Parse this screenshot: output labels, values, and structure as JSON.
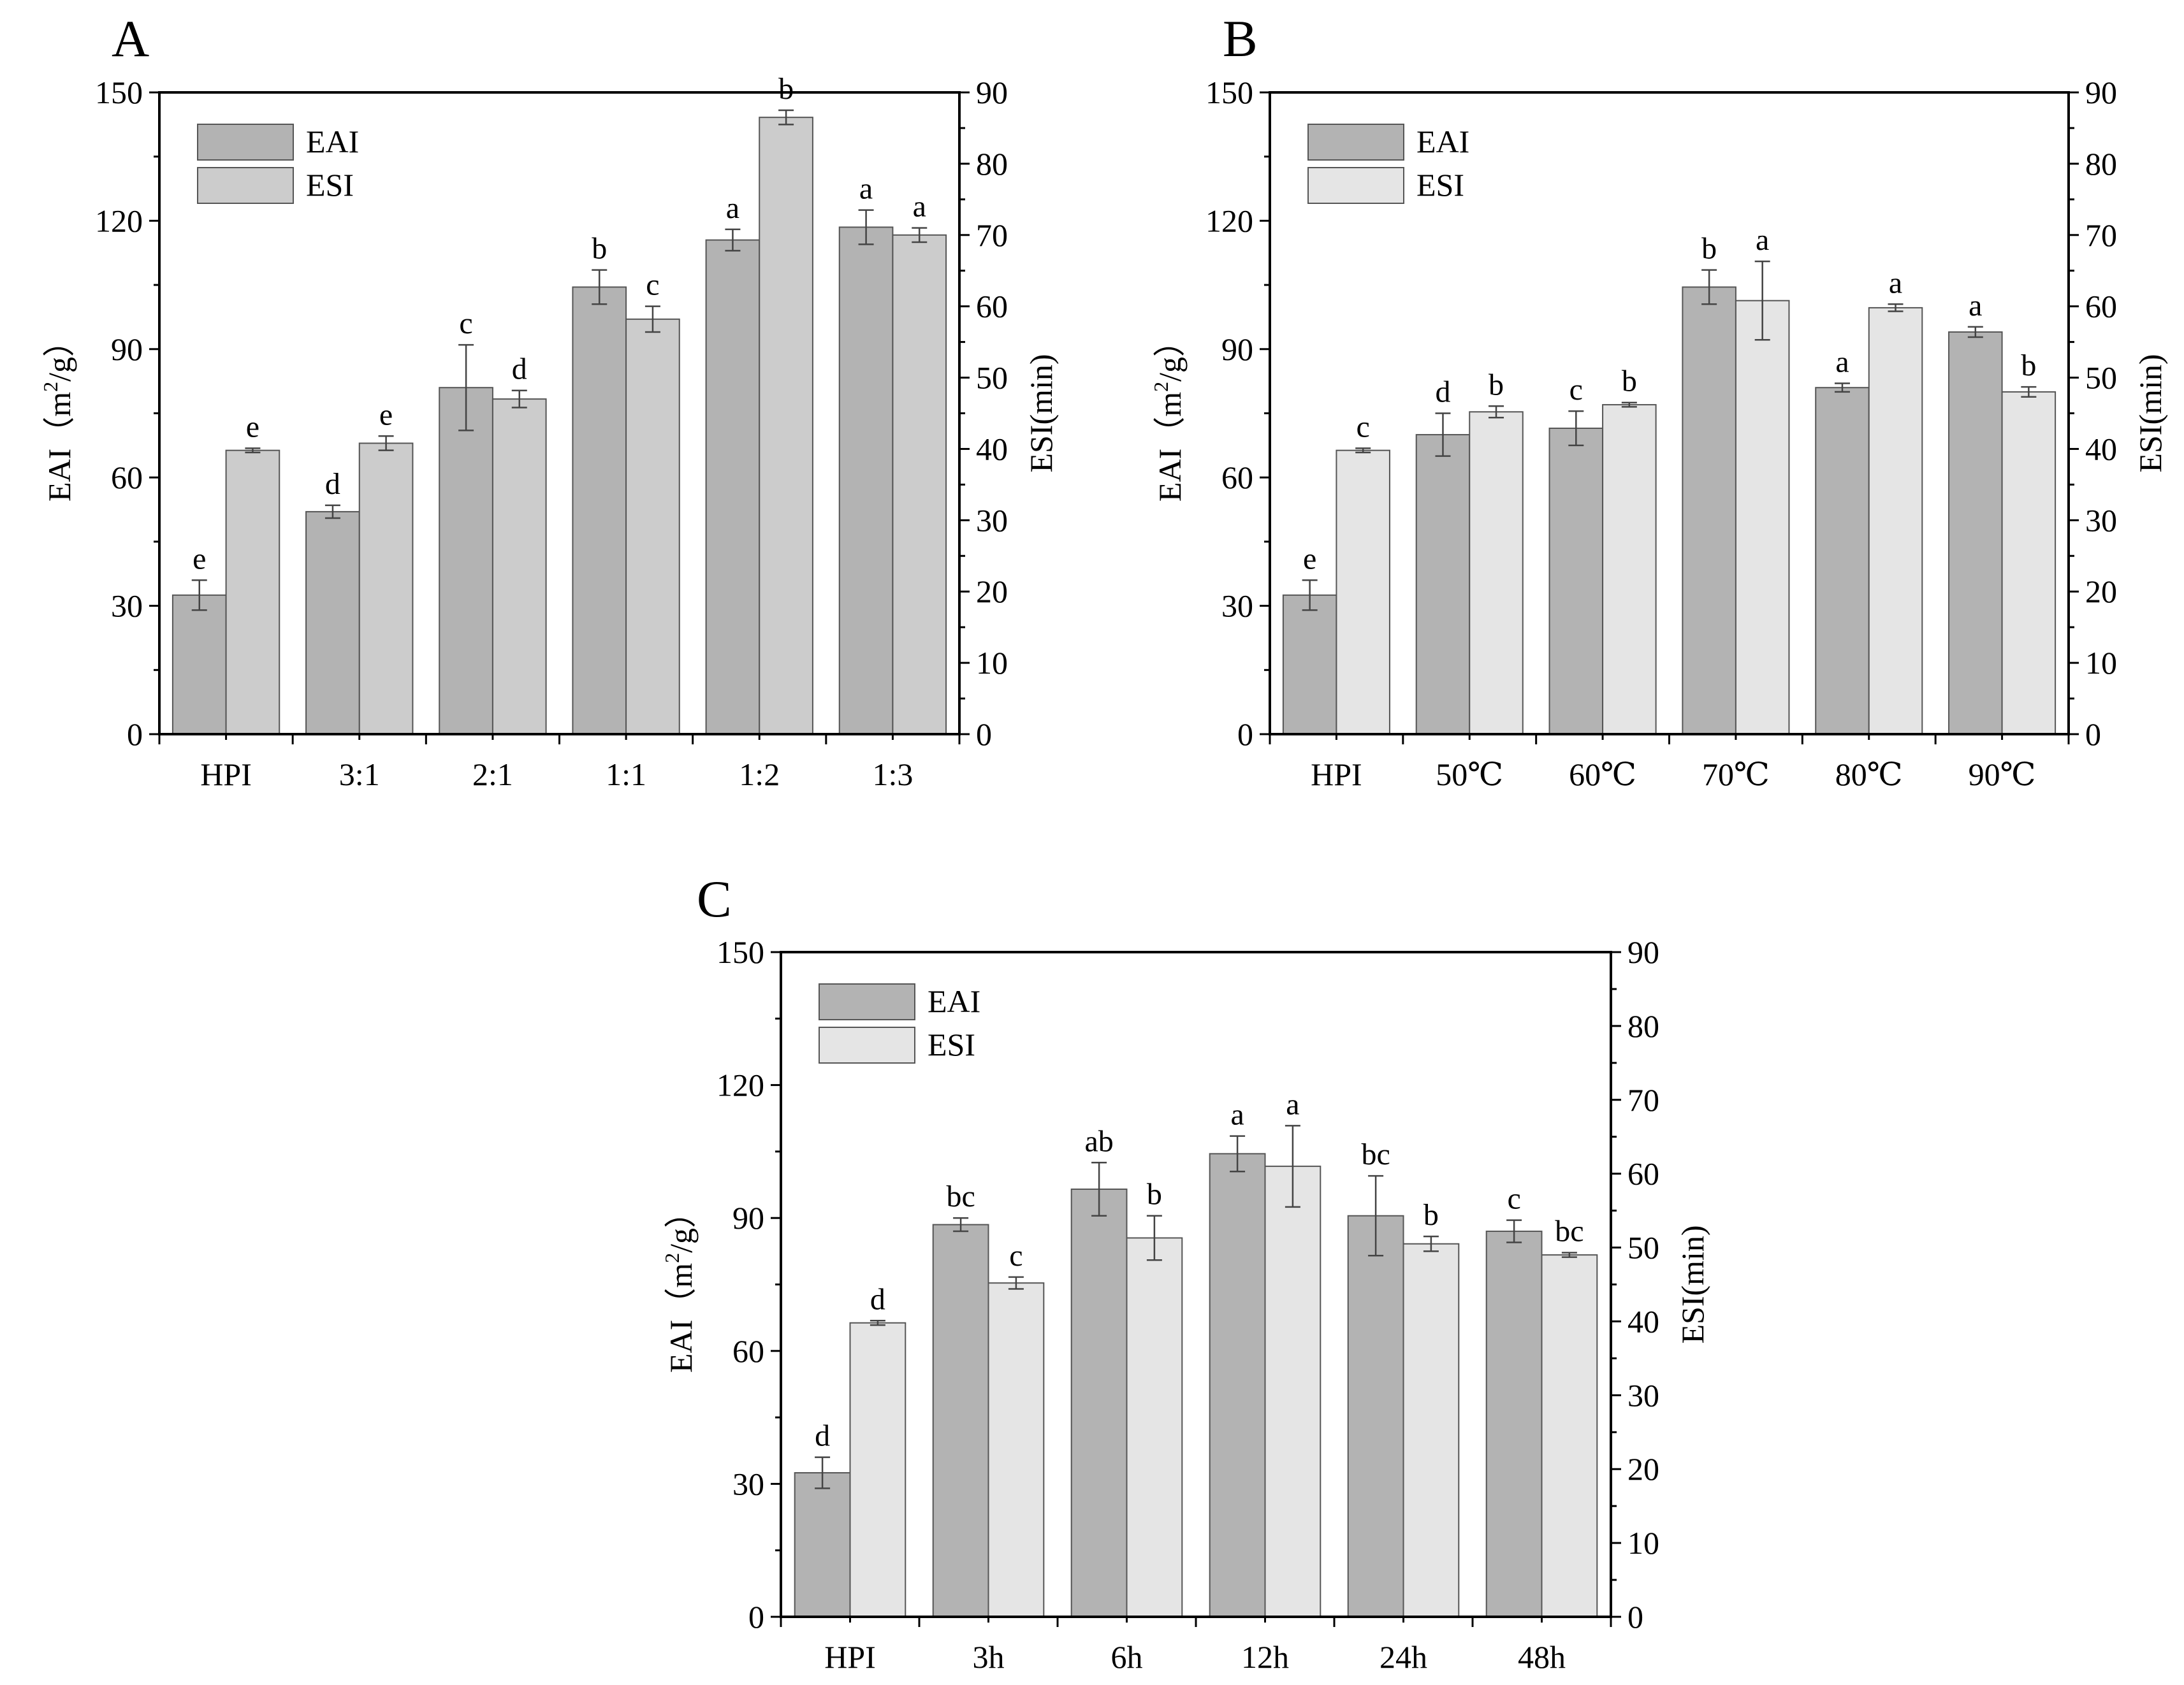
{
  "chart_data": [
    {
      "panel": "A",
      "type": "bar",
      "categories": [
        "HPI",
        "3:1",
        "2:1",
        "1:1",
        "1:2",
        "1:3"
      ],
      "ylabel": "EAI（m²/g）",
      "ylabel_parts": {
        "pre": "EAI（m",
        "sup": "2",
        "post": "/g）"
      },
      "y2label": "ESI(min)",
      "ylim": [
        0,
        150
      ],
      "y_ticks": [
        "0",
        "30",
        "60",
        "90",
        "120",
        "150"
      ],
      "y2lim": [
        0,
        90
      ],
      "y2_ticks": [
        "0",
        "10",
        "20",
        "30",
        "40",
        "50",
        "60",
        "70",
        "80",
        "90"
      ],
      "series": [
        {
          "name": "EAI",
          "axis": "left",
          "color": "#b3b3b3",
          "values": [
            32.5,
            52,
            81,
            104.5,
            115.5,
            118.5
          ],
          "errors": [
            3.5,
            1.5,
            10,
            4,
            2.5,
            4
          ],
          "letters": [
            "e",
            "d",
            "c",
            "b",
            "a",
            "a"
          ]
        },
        {
          "name": "ESI",
          "axis": "right",
          "color": "#cccccc",
          "values": [
            39.8,
            40.8,
            47,
            58.2,
            86.5,
            70
          ],
          "errors": [
            0.3,
            1,
            1.2,
            1.8,
            1,
            1
          ],
          "letters": [
            "e",
            "e",
            "d",
            "c",
            "b",
            "a"
          ]
        }
      ]
    },
    {
      "panel": "B",
      "type": "bar",
      "categories": [
        "HPI",
        "50℃",
        "60℃",
        "70℃",
        "80℃",
        "90℃"
      ],
      "ylabel": "EAI（m²/g）",
      "ylabel_parts": {
        "pre": "EAI（m",
        "sup": "2",
        "post": "/g）"
      },
      "y2label": "ESI(min)",
      "ylim": [
        0,
        150
      ],
      "y_ticks": [
        "0",
        "30",
        "60",
        "90",
        "120",
        "150"
      ],
      "y2lim": [
        0,
        90
      ],
      "y2_ticks": [
        "0",
        "10",
        "20",
        "30",
        "40",
        "50",
        "60",
        "70",
        "80",
        "90"
      ],
      "series": [
        {
          "name": "EAI",
          "axis": "left",
          "color": "#b3b3b3",
          "values": [
            32.5,
            70,
            71.5,
            104.5,
            81,
            94
          ],
          "errors": [
            3.5,
            5,
            4,
            4,
            1,
            1.2
          ],
          "letters": [
            "e",
            "d",
            "c",
            "b",
            "a",
            "a"
          ]
        },
        {
          "name": "ESI",
          "axis": "right",
          "color": "#e5e5e5",
          "values": [
            39.8,
            45.2,
            46.2,
            60.8,
            59.8,
            48
          ],
          "errors": [
            0.3,
            0.8,
            0.3,
            5.5,
            0.5,
            0.7
          ],
          "letters": [
            "c",
            "b",
            "b",
            "a",
            "a",
            "b"
          ]
        }
      ]
    },
    {
      "panel": "C",
      "type": "bar",
      "categories": [
        "HPI",
        "3h",
        "6h",
        "12h",
        "24h",
        "48h"
      ],
      "ylabel": "EAI（m²/g）",
      "ylabel_parts": {
        "pre": "EAI（m",
        "sup": "2",
        "post": "/g）"
      },
      "y2label": "ESI(min)",
      "ylim": [
        0,
        150
      ],
      "y_ticks": [
        "0",
        "30",
        "60",
        "90",
        "120",
        "150"
      ],
      "y2lim": [
        0,
        90
      ],
      "y2_ticks": [
        "0",
        "10",
        "20",
        "30",
        "40",
        "50",
        "60",
        "70",
        "80",
        "90"
      ],
      "series": [
        {
          "name": "EAI",
          "axis": "left",
          "color": "#b3b3b3",
          "values": [
            32.5,
            88.5,
            96.5,
            104.5,
            90.5,
            87
          ],
          "errors": [
            3.5,
            1.5,
            6,
            4,
            9,
            2.5
          ],
          "letters": [
            "d",
            "bc",
            "ab",
            "a",
            "bc",
            "c"
          ]
        },
        {
          "name": "ESI",
          "axis": "right",
          "color": "#e5e5e5",
          "values": [
            39.8,
            45.2,
            51.3,
            61,
            50.5,
            49
          ],
          "errors": [
            0.3,
            0.8,
            3,
            5.5,
            1,
            0.3
          ],
          "letters": [
            "d",
            "c",
            "b",
            "a",
            "b",
            "bc"
          ]
        }
      ]
    }
  ]
}
